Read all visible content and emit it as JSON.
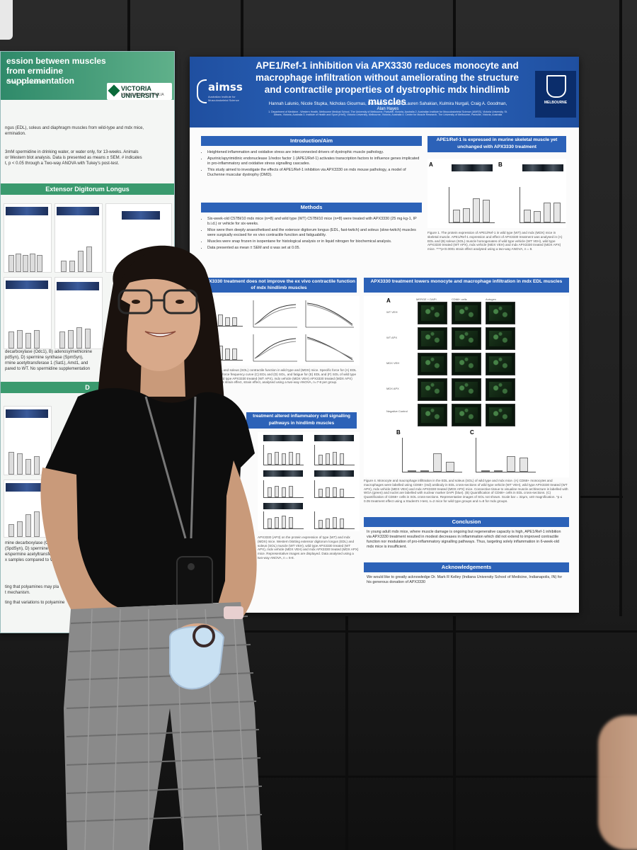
{
  "left_poster": {
    "title": "ession between muscles from ermidine supplementation",
    "author": "Craig A. Goodman",
    "university": "VICTORIA UNIVERSITY",
    "university_sub": "MELBOURNE AUSTRALIA",
    "intro_line1": "ngus (EDL), soleus and diaphragm muscles from wild-type and mdx mice,",
    "intro_line2": "ermination.",
    "methods_line1": "3mM spermidine in drinking water, or water only, for 13-weeks. Animals",
    "methods_line2": "or Western blot analysis. Data is presented as means ± SEM. # indicates",
    "methods_line3": "t, p < 0.05 through a Two-way ANOVA with Tukey's post-test.",
    "section_edl": "Extensor Digitorum Longus",
    "caption1": "decarboxylase (Odc1), B) adenosylmethionine",
    "caption2": "pdSyn), D) spermine synthase (SpmSyn),",
    "caption3": "rmine acetyltransferase 1 (Sat1), Amd1, and",
    "caption4": "pared to WT. No spermidine supplementation",
    "section2": "D",
    "caption5": "mine decarboxylase (ODC1",
    "caption6": "(SpdSyn), D) spermine",
    "caption7": "e/spermine acetyltransferas",
    "caption8": "x samples compared to WT. No spe",
    "conc1": "ting that polyamines may pla",
    "conc2": "t mechanism.",
    "conc3": "ting that variations to polyamine"
  },
  "poster": {
    "org": "aimss",
    "org_sub": "Australian Institute for Musculoskeletal Science",
    "title": "APE1/Ref-1 inhibition via APX3330 reduces monocyte and macrophage infiltration without ameliorating the structure and contractile properties of dystrophic mdx hindlimb muscles",
    "authors": "Hannah Lalunio, Nicole Stupka, Nicholas Giourmas, Danielle A Debruin, Lauren Sahakian, Kulmira Nurgali, Craig A. Goodman, Alan Hayes",
    "affiliations": "1. Department of Medicine - Western Health, Melbourne Medical School, The University of Melbourne, Parkville, Victoria, Australia 2. Australian Institute for Musculoskeletal Science (AIMSS), Victoria University, St. Albans, Victoria, Australia 3. Institute of Health and Sport (IHeS), Victoria University, Melbourne, Victoria, Australia 4. Centre for Muscle Research, The University of Melbourne, Parkville, Victoria, Australia",
    "melbourne": "MELBOURNE",
    "intro_heading": "Introduction/Aim",
    "intro_points": [
      "Heightened inflammation and oxidative stress are interconnected drivers of dystrophic muscle pathology.",
      "Apurinic/apyrimidinic endonuclease 1/redox factor 1 (APE1/Ref-1) activates transcription factors to influence genes implicated in pro-inflammatory and oxidative stress signalling cascades.",
      "This study aimed to investigate the effects of APE1/Ref-1 inhibition via APX3330 on mdx mouse pathology, a model of Duchenne muscular dystrophy (DMD)."
    ],
    "methods_heading": "Methods",
    "methods_points": [
      "Six-week-old C57Bl/10 mdx mice (n=8) and wild type (WT) C57Bl/10 mice (n=8) were treated with APX3330 (25 mg·kg-1, IP b.i.d.) or vehicle for six-weeks.",
      "Mice were then deeply anaesthetised and the extensor digitorum longus (EDL, fast-twitch) and soleus (slow-twitch) muscles were surgically excised for ex vivo contractile function and fatiguability.",
      "Muscles were snap frozen in isopentane for histological analysis or in liquid nitrogen for biochemical analysis.",
      "Data presented as mean ± SEM and α was set at 0.05."
    ],
    "ape1_heading": "APE1/Ref-1 is expressed in murine skeletal muscle yet unchanged with APX3330 treatment",
    "fig1_caption": "Figure 1. The protein expression of APE1/Ref-1 in wild type (WT) and mdx (MDX) mice in skeletal muscle. APE1/Ref-1 expression and effect of APX3330 treatment was analysed in (A) EDL and (B) soleus (SOL) muscle homogenates of wild type vehicle (WT VEH), wild type APX3330 treated (WT APX), mdx vehicle (MDX VEH) and mdx APX3330 treated (MDX APX) mice. ****p<0.0001 strain effect analysed using a two-way ANOVA, n = 8.",
    "contractile_heading": "APX3330 treatment does not improve the ex vivo contractile function of mdx hindlimb muscles",
    "fig2_caption": "Figure 2. EDL and soleus (SOL) contractile function in wild type and (MDX) mice. Specific force for (A) EDL and (B) SOL, force frequency curve (C) EDL and (D) SOL, and fatigue for (E) EDL and (F) SOL of wild type (WT VEH), wild type APX3330 treated (WT APX), mdx vehicle (MDX VEH) APX3330 treated (MDX APX) mice. *p ≤ 0.05 strain effect, strain effect, analysed using a two-way ANOVA, n=7-8 per group.",
    "signalling_heading": "treatment altered inflammatory cell signalling pathways in hindlimb muscles",
    "fig3_caption": "APX3330 (AP3) on the protein expression of type (WT) and mdx (MDX) mice. Western blotting extensor digitorum longus (EDL) and soleus (SOL) muscle (WT VEH), wild type APX3330 treated (WT APX), mdx vehicle (MDX VEH) and mdx APX3330 treated (MDX APX) mice. Representative images are displayed. Data analysed using a two-way ANOVA, n = 6-8.",
    "infiltration_heading": "APX3330 treatment lowers monocyte and macrophage infiltration in mdx EDL muscles",
    "micro_cols": [
      "MERGE + DAPI",
      "CD68+ cells",
      "Autogen"
    ],
    "micro_rows": [
      "WT VEH",
      "WT APX",
      "MDX VEH",
      "MDX APX",
      "Negative Control"
    ],
    "fig4_caption": "Figure 4. Monocyte and macrophage infiltration in the EDL and soleus (SOL) of wild type and mdx mice. (A) CD68+ monocytes and macrophages were labelled using CD68+ (red) antibody in EDL cross-sections of wild type vehicle (WT VEH), wild type APX3330 treated (WT APX), mdx vehicle (MDX VEH) and mdx APX3330 treated (MDX APX) mice. Connective tissue to visualise muscle architecture is labelled with WGA (green) and nuclei are labelled with nuclear marker DAPI (blue). (B) Quantification of CD68+ cells in EDL cross-sections. (C) Quantification of CD68+ cells in SOL cross-sections. Representative images of SOL not shown. Scale bar = 32µm, x40 magnification. *p ≤ 0.05 treatment effect using a Student's t-test, n=2 mice for wild type groups and n=8 for mdx groups.",
    "conclusion_heading": "Conclusion",
    "conclusion": "In young adult mdx mice, where muscle damage is ongoing but regenerative capacity is high, APE1/Ref-1 inhibition via APX3330 treatment resulted in modest decreases in inflammation which did not extend to improved contractile function nor modulation of pro-inflammatory signalling pathways. Thus, targeting solely inflammation in 6-week-old mdx mice is insufficient.",
    "ack_heading": "Acknowledgements",
    "ack": "We would like to greatly acknowledge Dr. Mark R Kelley (Indiana University School of Medicine, Indianapolis, IN) for his generous donation of APX3330",
    "panel_a": "A",
    "panel_b": "B",
    "panel_c": "C",
    "bar_labels": [
      "WT VEH",
      "WT APX",
      "MDX VEH",
      "MDX APX"
    ]
  },
  "colors": {
    "poster_blue": "#2c62b8",
    "header_blue": "#1f4fa0",
    "left_green": "#3a9a6e"
  }
}
